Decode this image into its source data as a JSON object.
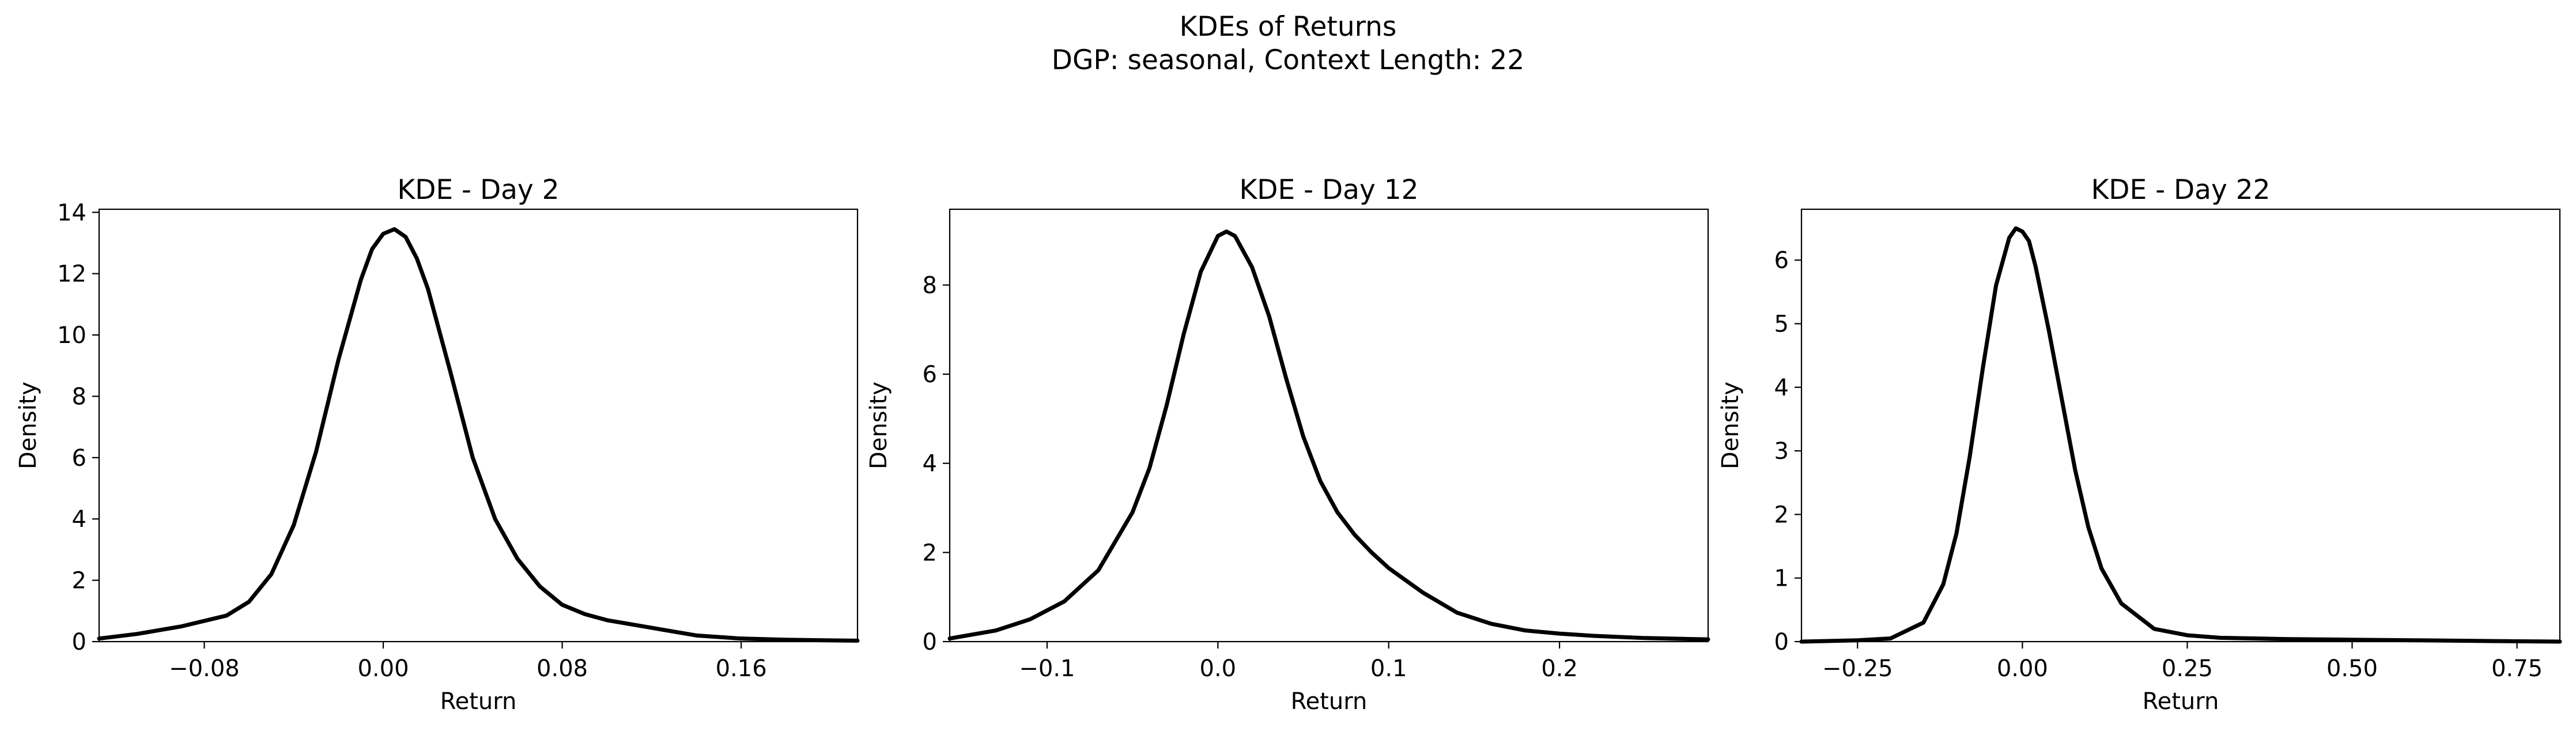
{
  "figure": {
    "title": "KDEs of Returns",
    "subtitle": "DGP: seasonal, Context Length: 22"
  },
  "chart_data": [
    {
      "type": "line",
      "title": "KDE - Day 2",
      "xlabel": "Return",
      "ylabel": "Density",
      "xlim": [
        -0.127,
        0.212
      ],
      "ylim": [
        0,
        14.1
      ],
      "xticks": [
        -0.08,
        0.0,
        0.08,
        0.16
      ],
      "xtick_labels": [
        "−0.08",
        "0.00",
        "0.08",
        "0.16"
      ],
      "yticks": [
        0,
        2,
        4,
        6,
        8,
        10,
        12,
        14
      ],
      "ytick_labels": [
        "0",
        "2",
        "4",
        "6",
        "8",
        "10",
        "12",
        "14"
      ],
      "grid": false,
      "series": [
        {
          "color": "#000000",
          "x": [
            -0.127,
            -0.11,
            -0.09,
            -0.07,
            -0.06,
            -0.05,
            -0.04,
            -0.03,
            -0.02,
            -0.01,
            -0.005,
            0.0,
            0.005,
            0.01,
            0.015,
            0.02,
            0.03,
            0.04,
            0.05,
            0.06,
            0.07,
            0.08,
            0.09,
            0.1,
            0.12,
            0.14,
            0.16,
            0.18,
            0.2,
            0.212
          ],
          "y": [
            0.1,
            0.25,
            0.5,
            0.85,
            1.3,
            2.2,
            3.8,
            6.2,
            9.2,
            11.8,
            12.8,
            13.3,
            13.45,
            13.2,
            12.5,
            11.5,
            8.8,
            6.0,
            4.0,
            2.7,
            1.8,
            1.2,
            0.9,
            0.7,
            0.45,
            0.2,
            0.1,
            0.06,
            0.04,
            0.03
          ]
        }
      ]
    },
    {
      "type": "line",
      "title": "KDE - Day 12",
      "xlabel": "Return",
      "ylabel": "Density",
      "xlim": [
        -0.157,
        0.287
      ],
      "ylim": [
        0,
        9.7
      ],
      "xticks": [
        -0.1,
        0.0,
        0.1,
        0.2
      ],
      "xtick_labels": [
        "−0.1",
        "0.0",
        "0.1",
        "0.2"
      ],
      "yticks": [
        0,
        2,
        4,
        6,
        8
      ],
      "ytick_labels": [
        "0",
        "2",
        "4",
        "6",
        "8"
      ],
      "grid": false,
      "series": [
        {
          "color": "#000000",
          "x": [
            -0.157,
            -0.13,
            -0.11,
            -0.09,
            -0.07,
            -0.05,
            -0.04,
            -0.03,
            -0.02,
            -0.01,
            0.0,
            0.005,
            0.01,
            0.02,
            0.03,
            0.04,
            0.05,
            0.06,
            0.07,
            0.08,
            0.09,
            0.1,
            0.12,
            0.14,
            0.16,
            0.18,
            0.2,
            0.22,
            0.25,
            0.287
          ],
          "y": [
            0.07,
            0.25,
            0.5,
            0.9,
            1.6,
            2.9,
            3.9,
            5.3,
            6.9,
            8.3,
            9.1,
            9.2,
            9.1,
            8.4,
            7.3,
            5.9,
            4.6,
            3.6,
            2.9,
            2.4,
            2.0,
            1.65,
            1.1,
            0.65,
            0.4,
            0.25,
            0.18,
            0.13,
            0.08,
            0.05
          ]
        }
      ]
    },
    {
      "type": "line",
      "title": "KDE - Day 22",
      "xlabel": "Return",
      "ylabel": "Density",
      "xlim": [
        -0.335,
        0.815
      ],
      "ylim": [
        0,
        6.8
      ],
      "xticks": [
        -0.25,
        0.0,
        0.25,
        0.5,
        0.75
      ],
      "xtick_labels": [
        "−0.25",
        "0.00",
        "0.25",
        "0.50",
        "0.75"
      ],
      "yticks": [
        0,
        1,
        2,
        3,
        4,
        5,
        6
      ],
      "ytick_labels": [
        "0",
        "1",
        "2",
        "3",
        "4",
        "5",
        "6"
      ],
      "grid": false,
      "series": [
        {
          "color": "#000000",
          "x": [
            -0.335,
            -0.25,
            -0.2,
            -0.15,
            -0.12,
            -0.1,
            -0.08,
            -0.06,
            -0.04,
            -0.02,
            -0.01,
            0.0,
            0.01,
            0.02,
            0.04,
            0.06,
            0.08,
            0.1,
            0.12,
            0.15,
            0.2,
            0.25,
            0.3,
            0.4,
            0.5,
            0.6,
            0.7,
            0.815
          ],
          "y": [
            0.0,
            0.02,
            0.05,
            0.3,
            0.9,
            1.7,
            2.9,
            4.3,
            5.6,
            6.35,
            6.5,
            6.45,
            6.3,
            5.9,
            4.9,
            3.8,
            2.7,
            1.8,
            1.15,
            0.6,
            0.2,
            0.1,
            0.06,
            0.04,
            0.03,
            0.02,
            0.01,
            0.0
          ]
        }
      ]
    }
  ]
}
